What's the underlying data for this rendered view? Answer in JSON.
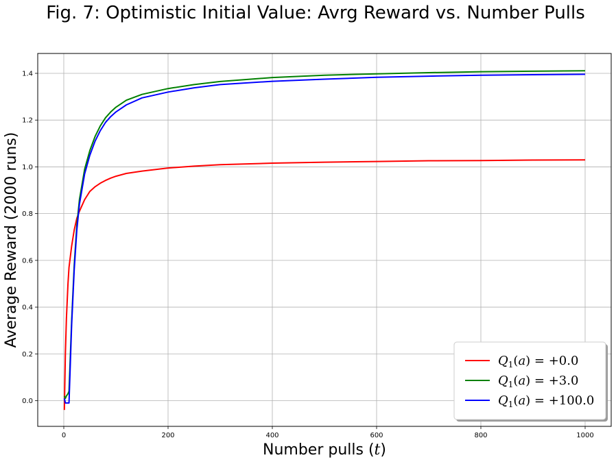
{
  "chart_data": {
    "type": "line",
    "title": "Fig. 7: Optimistic Initial Value: Avrg Reward vs. Number Pulls",
    "xlabel": "Number pulls (t)",
    "ylabel": "Average Reward (2000 runs)",
    "xlim": [
      -50,
      1050
    ],
    "ylim": [
      -0.11,
      1.485
    ],
    "xticks": [
      "0",
      "200",
      "400",
      "600",
      "800",
      "1000"
    ],
    "yticks": [
      "0.0",
      "0.2",
      "0.4",
      "0.6",
      "0.8",
      "1.0",
      "1.2",
      "1.4"
    ],
    "grid": true,
    "legend_position": "lower-right",
    "series": [
      {
        "name": "Q1(a) = +0.0",
        "color": "#ff0000",
        "x": [
          1,
          3,
          5,
          8,
          10,
          15,
          20,
          25,
          30,
          40,
          50,
          60,
          70,
          80,
          90,
          100,
          120,
          150,
          200,
          250,
          300,
          400,
          500,
          600,
          700,
          800,
          900,
          1000
        ],
        "y": [
          -0.04,
          0.2,
          0.35,
          0.5,
          0.57,
          0.66,
          0.73,
          0.78,
          0.81,
          0.86,
          0.895,
          0.915,
          0.93,
          0.942,
          0.952,
          0.96,
          0.972,
          0.982,
          0.995,
          1.003,
          1.009,
          1.016,
          1.02,
          1.023,
          1.026,
          1.027,
          1.029,
          1.03
        ]
      },
      {
        "name": "Q1(a) = +3.0",
        "color": "#008000",
        "x": [
          1,
          3,
          5,
          8,
          10,
          15,
          20,
          25,
          30,
          40,
          50,
          60,
          70,
          80,
          90,
          100,
          120,
          150,
          200,
          250,
          300,
          400,
          500,
          600,
          700,
          800,
          900,
          1000
        ],
        "y": [
          0.02,
          0.01,
          0.02,
          0.03,
          0.04,
          0.34,
          0.58,
          0.75,
          0.86,
          0.99,
          1.07,
          1.13,
          1.175,
          1.21,
          1.235,
          1.255,
          1.285,
          1.31,
          1.335,
          1.352,
          1.365,
          1.382,
          1.392,
          1.398,
          1.403,
          1.407,
          1.409,
          1.411
        ]
      },
      {
        "name": "Q1(a) = +100.0",
        "color": "#0000ff",
        "x": [
          1,
          3,
          5,
          8,
          10,
          15,
          20,
          25,
          30,
          40,
          50,
          60,
          70,
          80,
          90,
          100,
          120,
          150,
          200,
          250,
          300,
          400,
          500,
          600,
          700,
          800,
          900,
          1000
        ],
        "y": [
          0.01,
          -0.01,
          -0.01,
          -0.01,
          -0.01,
          0.32,
          0.56,
          0.73,
          0.84,
          0.97,
          1.05,
          1.11,
          1.155,
          1.19,
          1.215,
          1.235,
          1.265,
          1.295,
          1.32,
          1.338,
          1.352,
          1.366,
          1.375,
          1.383,
          1.388,
          1.392,
          1.394,
          1.396
        ]
      }
    ]
  }
}
